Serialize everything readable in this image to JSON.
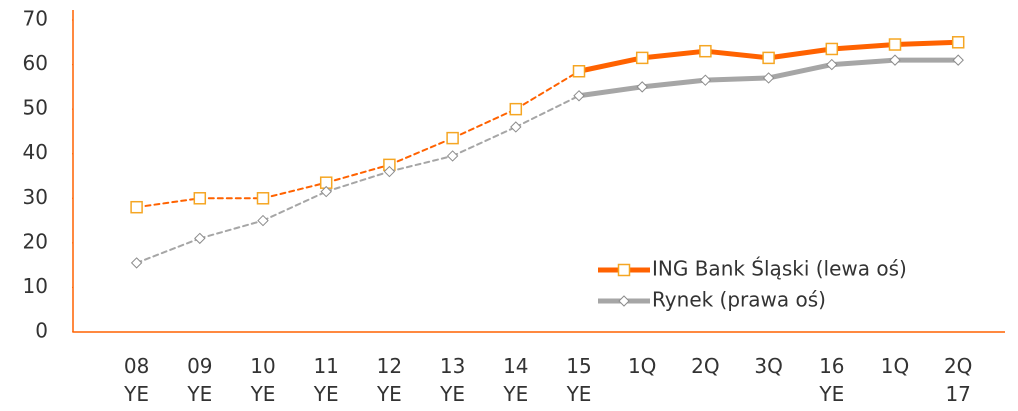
{
  "chart_data": {
    "type": "line",
    "categories": [
      "08\nYE",
      "09\nYE",
      "10\nYE",
      "11\nYE",
      "12\nYE",
      "13\nYE",
      "14\nYE",
      "15\nYE",
      "1Q",
      "2Q",
      "3Q",
      "16\nYE",
      "1Q",
      "2Q\n17"
    ],
    "series": [
      {
        "name": "ING Bank Śląski (lewa oś)",
        "color": "#ff6200",
        "values": [
          28,
          30,
          30,
          33.5,
          37.5,
          43.5,
          50,
          58.5,
          61.5,
          63,
          61.5,
          63.5,
          64.5,
          65
        ]
      },
      {
        "name": "Rynek (prawa oś)",
        "color": "#a6a6a6",
        "values": [
          15.5,
          21,
          25,
          31.5,
          36,
          39.5,
          46,
          53,
          55,
          56.5,
          57,
          60,
          61,
          61
        ]
      }
    ],
    "ylim": [
      0,
      70
    ],
    "yticks": [
      0,
      10,
      20,
      30,
      40,
      50,
      60,
      70
    ],
    "legend": "lower right"
  }
}
